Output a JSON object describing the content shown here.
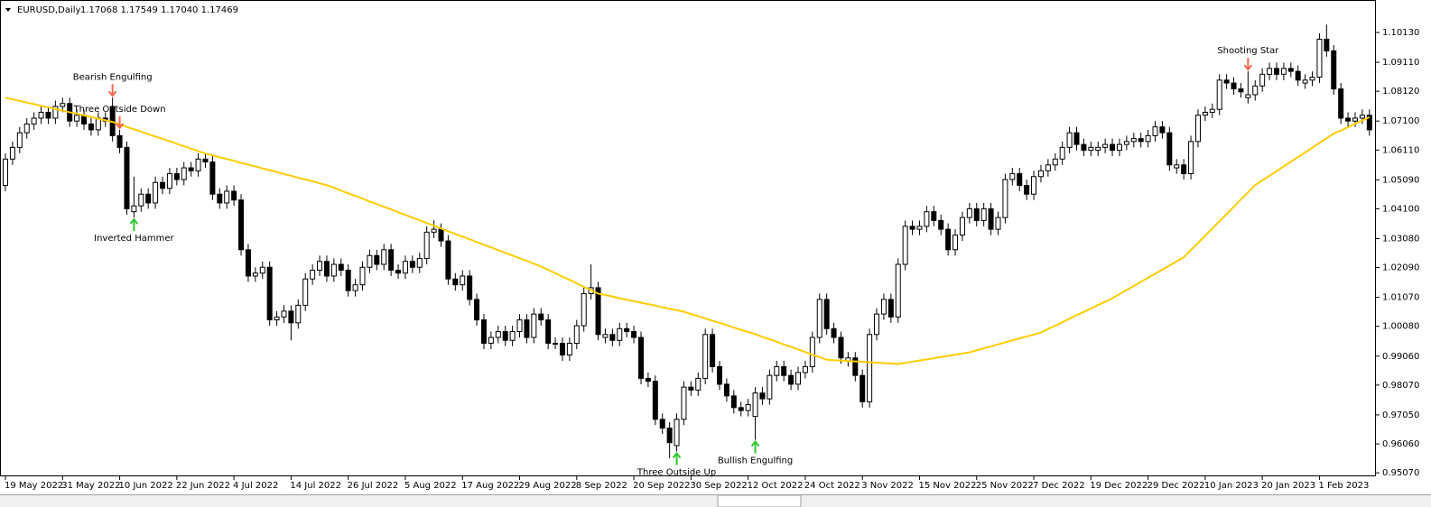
{
  "chart_data": {
    "type": "candlestick",
    "symbol": "EURUSD,Daily",
    "quote": "1.17068 1.17549 1.17040 1.17469",
    "up_color": "#ffffff",
    "down_color": "#000000",
    "outline_color": "#000000",
    "categories": [
      "19 May 2022",
      null,
      null,
      null,
      null,
      null,
      null,
      null,
      "31 May 2022",
      null,
      null,
      null,
      null,
      null,
      null,
      null,
      "10 Jun 2022",
      null,
      null,
      null,
      null,
      null,
      null,
      null,
      "22 Jun 2022",
      null,
      null,
      null,
      null,
      null,
      null,
      null,
      "4 Jul 2022",
      null,
      null,
      null,
      null,
      null,
      null,
      null,
      "14 Jul 2022",
      null,
      null,
      null,
      null,
      null,
      null,
      null,
      "26 Jul 2022",
      null,
      null,
      null,
      null,
      null,
      null,
      null,
      "5 Aug 2022",
      null,
      null,
      null,
      null,
      null,
      null,
      null,
      "17 Aug 2022",
      null,
      null,
      null,
      null,
      null,
      null,
      null,
      "29 Aug 2022",
      null,
      null,
      null,
      null,
      null,
      null,
      null,
      "8 Sep 2022",
      null,
      null,
      null,
      null,
      null,
      null,
      null,
      "20 Sep 2022",
      null,
      null,
      null,
      null,
      null,
      null,
      null,
      "30 Sep 2022",
      null,
      null,
      null,
      null,
      null,
      null,
      null,
      "12 Oct 2022",
      null,
      null,
      null,
      null,
      null,
      null,
      null,
      "24 Oct 2022",
      null,
      null,
      null,
      null,
      null,
      null,
      null,
      "3 Nov 2022",
      null,
      null,
      null,
      null,
      null,
      null,
      null,
      "15 Nov 2022",
      null,
      null,
      null,
      null,
      null,
      null,
      null,
      "25 Nov 2022",
      null,
      null,
      null,
      null,
      null,
      null,
      null,
      "7 Dec 2022",
      null,
      null,
      null,
      null,
      null,
      null,
      null,
      "19 Dec 2022",
      null,
      null,
      null,
      null,
      null,
      null,
      null,
      "29 Dec 2022",
      null,
      null,
      null,
      null,
      null,
      null,
      null,
      "10 Jan 2023",
      null,
      null,
      null,
      null,
      null,
      null,
      null,
      "20 Jan 2023",
      null,
      null,
      null,
      null,
      null,
      null,
      null,
      "1 Feb 2023",
      null,
      null,
      null,
      null,
      null,
      null,
      null
    ],
    "open": [
      1.049,
      1.058,
      1.062,
      1.067,
      1.07,
      1.072,
      1.074,
      1.072,
      1.076,
      1.077,
      1.071,
      1.073,
      1.07,
      1.068,
      1.072,
      1.076,
      1.066,
      1.062,
      1.04,
      1.042,
      1.046,
      1.043,
      1.05,
      1.048,
      1.053,
      1.051,
      1.055,
      1.054,
      1.058,
      1.057,
      1.046,
      1.043,
      1.047,
      1.044,
      1.027,
      1.018,
      1.019,
      1.021,
      1.003,
      1.004,
      1.006,
      1.002,
      1.008,
      1.017,
      1.02,
      1.023,
      1.018,
      1.022,
      1.02,
      1.013,
      1.015,
      1.021,
      1.025,
      1.022,
      1.027,
      1.02,
      1.019,
      1.023,
      1.021,
      1.024,
      1.033,
      1.034,
      1.03,
      1.017,
      1.015,
      1.018,
      1.01,
      1.003,
      0.995,
      0.997,
      0.999,
      0.996,
      0.999,
      1.003,
      0.997,
      1.005,
      1.003,
      0.995,
      0.995,
      0.991,
      0.995,
      1.001,
      1.012,
      1.014,
      0.997,
      0.998,
      0.996,
      1.0,
      0.999,
      0.997,
      0.983,
      0.982,
      0.969,
      0.966,
      0.96,
      0.969,
      0.98,
      0.979,
      0.983,
      0.998,
      0.987,
      0.981,
      0.977,
      0.973,
      0.972,
      0.97,
      0.978,
      0.976,
      0.984,
      0.987,
      0.984,
      0.981,
      0.985,
      0.987,
      0.997,
      1.01,
      1.0,
      0.997,
      0.989,
      0.99,
      0.984,
      0.975,
      0.998,
      1.005,
      1.01,
      1.004,
      1.022,
      1.035,
      1.034,
      1.035,
      1.04,
      1.037,
      1.034,
      1.027,
      1.032,
      1.038,
      1.041,
      1.037,
      1.041,
      1.034,
      1.038,
      1.051,
      1.053,
      1.049,
      1.046,
      1.052,
      1.054,
      1.056,
      1.058,
      1.062,
      1.067,
      1.063,
      1.061,
      1.061,
      1.062,
      1.063,
      1.061,
      1.063,
      1.064,
      1.065,
      1.064,
      1.066,
      1.069,
      1.067,
      1.055,
      1.056,
      1.053,
      1.064,
      1.073,
      1.074,
      1.075,
      1.085,
      1.084,
      1.082,
      1.079,
      1.08,
      1.083,
      1.087,
      1.089,
      1.087,
      1.089,
      1.088,
      1.084,
      1.085,
      1.086,
      1.099,
      1.095,
      1.082,
      1.072,
      1.071,
      1.072,
      1.073
    ],
    "high": [
      1.06,
      1.064,
      1.069,
      1.072,
      1.074,
      1.076,
      1.076,
      1.078,
      1.079,
      1.079,
      1.075,
      1.075,
      1.072,
      1.074,
      1.074,
      1.079,
      1.068,
      1.064,
      1.052,
      1.048,
      1.048,
      1.052,
      1.052,
      1.055,
      1.055,
      1.057,
      1.057,
      1.06,
      1.06,
      1.059,
      1.048,
      1.049,
      1.049,
      1.046,
      1.029,
      1.021,
      1.023,
      1.023,
      1.006,
      1.008,
      1.008,
      1.01,
      1.019,
      1.022,
      1.025,
      1.025,
      1.024,
      1.024,
      1.022,
      1.017,
      1.023,
      1.027,
      1.027,
      1.029,
      1.029,
      1.022,
      1.025,
      1.025,
      1.026,
      1.035,
      1.037,
      1.036,
      1.032,
      1.019,
      1.02,
      1.02,
      1.012,
      1.005,
      0.999,
      1.001,
      1.001,
      1.001,
      1.005,
      1.005,
      1.007,
      1.007,
      1.005,
      0.997,
      0.997,
      0.997,
      1.003,
      1.014,
      1.022,
      1.016,
      1.0,
      1.0,
      1.002,
      1.002,
      1.001,
      0.999,
      0.985,
      0.984,
      0.971,
      0.968,
      0.971,
      0.982,
      0.982,
      0.985,
      1.0,
      1.0,
      0.989,
      0.983,
      0.979,
      0.975,
      0.976,
      0.98,
      0.98,
      0.986,
      0.989,
      0.989,
      0.986,
      0.987,
      0.989,
      0.999,
      1.012,
      1.012,
      1.002,
      0.999,
      0.992,
      0.992,
      0.986,
      1.0,
      1.007,
      1.012,
      1.012,
      1.024,
      1.037,
      1.037,
      1.037,
      1.042,
      1.042,
      1.039,
      1.036,
      1.034,
      1.04,
      1.043,
      1.043,
      1.043,
      1.043,
      1.04,
      1.053,
      1.055,
      1.055,
      1.051,
      1.054,
      1.056,
      1.058,
      1.06,
      1.064,
      1.069,
      1.069,
      1.065,
      1.064,
      1.064,
      1.065,
      1.065,
      1.065,
      1.066,
      1.067,
      1.067,
      1.068,
      1.071,
      1.071,
      1.069,
      1.058,
      1.058,
      1.066,
      1.075,
      1.076,
      1.077,
      1.087,
      1.087,
      1.086,
      1.084,
      1.088,
      1.085,
      1.089,
      1.091,
      1.091,
      1.091,
      1.091,
      1.09,
      1.087,
      1.088,
      1.101,
      1.104,
      1.097,
      1.084,
      1.074,
      1.074,
      1.075,
      1.075
    ],
    "low": [
      1.047,
      1.056,
      1.06,
      1.065,
      1.068,
      1.07,
      1.07,
      1.07,
      1.074,
      1.069,
      1.069,
      1.068,
      1.066,
      1.066,
      1.069,
      1.064,
      1.06,
      1.039,
      1.038,
      1.04,
      1.041,
      1.041,
      1.046,
      1.046,
      1.049,
      1.049,
      1.052,
      1.052,
      1.055,
      1.044,
      1.041,
      1.041,
      1.042,
      1.025,
      1.016,
      1.016,
      1.017,
      1.001,
      1.001,
      1.002,
      0.996,
      1.0,
      1.006,
      1.015,
      1.018,
      1.016,
      1.016,
      1.018,
      1.011,
      1.011,
      1.013,
      1.019,
      1.02,
      1.02,
      1.018,
      1.017,
      1.017,
      1.019,
      1.019,
      1.022,
      1.031,
      1.028,
      1.015,
      1.013,
      1.013,
      1.008,
      1.001,
      0.993,
      0.993,
      0.995,
      0.994,
      0.994,
      0.997,
      0.995,
      0.995,
      1.001,
      0.993,
      0.993,
      0.989,
      0.989,
      0.993,
      0.999,
      1.01,
      0.996,
      0.995,
      0.994,
      0.994,
      0.997,
      0.995,
      0.981,
      0.98,
      0.967,
      0.964,
      0.9557,
      0.958,
      0.967,
      0.977,
      0.977,
      0.981,
      0.985,
      0.979,
      0.975,
      0.971,
      0.97,
      0.97,
      0.962,
      0.974,
      0.974,
      0.982,
      0.982,
      0.979,
      0.979,
      0.983,
      0.985,
      0.995,
      0.998,
      0.995,
      0.988,
      0.987,
      0.982,
      0.973,
      0.973,
      0.996,
      1.003,
      1.002,
      1.002,
      1.02,
      1.032,
      1.032,
      1.033,
      1.035,
      1.032,
      1.025,
      1.025,
      1.03,
      1.036,
      1.035,
      1.035,
      1.032,
      1.032,
      1.036,
      1.049,
      1.047,
      1.044,
      1.044,
      1.05,
      1.052,
      1.054,
      1.056,
      1.06,
      1.061,
      1.059,
      1.059,
      1.059,
      1.06,
      1.059,
      1.059,
      1.061,
      1.062,
      1.062,
      1.062,
      1.064,
      1.065,
      1.054,
      1.053,
      1.051,
      1.051,
      1.062,
      1.071,
      1.072,
      1.073,
      1.082,
      1.08,
      1.079,
      1.077,
      1.078,
      1.081,
      1.085,
      1.085,
      1.085,
      1.086,
      1.083,
      1.082,
      1.083,
      1.084,
      1.093,
      1.08,
      1.07,
      1.069,
      1.069,
      1.07,
      1.066
    ],
    "close": [
      1.058,
      1.062,
      1.067,
      1.07,
      1.072,
      1.074,
      1.072,
      1.076,
      1.077,
      1.071,
      1.073,
      1.07,
      1.068,
      1.072,
      1.071,
      1.066,
      1.062,
      1.041,
      1.042,
      1.046,
      1.043,
      1.05,
      1.048,
      1.053,
      1.051,
      1.055,
      1.054,
      1.058,
      1.057,
      1.046,
      1.043,
      1.047,
      1.044,
      1.027,
      1.018,
      1.019,
      1.021,
      1.003,
      1.004,
      1.006,
      1.002,
      1.008,
      1.017,
      1.02,
      1.023,
      1.018,
      1.022,
      1.02,
      1.013,
      1.015,
      1.021,
      1.025,
      1.022,
      1.027,
      1.02,
      1.019,
      1.023,
      1.021,
      1.024,
      1.033,
      1.034,
      1.03,
      1.017,
      1.015,
      1.018,
      1.01,
      1.003,
      0.995,
      0.997,
      0.999,
      0.996,
      0.999,
      1.003,
      0.997,
      1.005,
      1.003,
      0.995,
      0.995,
      0.991,
      0.995,
      1.001,
      1.012,
      1.014,
      0.998,
      0.998,
      0.996,
      1.0,
      0.999,
      0.997,
      0.983,
      0.982,
      0.969,
      0.966,
      0.961,
      0.969,
      0.98,
      0.979,
      0.983,
      0.998,
      0.987,
      0.981,
      0.977,
      0.973,
      0.972,
      0.974,
      0.978,
      0.976,
      0.984,
      0.987,
      0.984,
      0.981,
      0.985,
      0.987,
      0.997,
      1.01,
      1.0,
      0.997,
      0.99,
      0.99,
      0.984,
      0.975,
      0.998,
      1.005,
      1.01,
      1.004,
      1.022,
      1.035,
      1.034,
      1.035,
      1.04,
      1.037,
      1.034,
      1.027,
      1.032,
      1.038,
      1.041,
      1.037,
      1.041,
      1.034,
      1.038,
      1.051,
      1.053,
      1.049,
      1.046,
      1.052,
      1.054,
      1.056,
      1.058,
      1.062,
      1.067,
      1.063,
      1.061,
      1.062,
      1.062,
      1.063,
      1.061,
      1.063,
      1.064,
      1.065,
      1.064,
      1.066,
      1.069,
      1.067,
      1.056,
      1.056,
      1.053,
      1.064,
      1.073,
      1.074,
      1.075,
      1.085,
      1.084,
      1.082,
      1.081,
      1.08,
      1.083,
      1.087,
      1.089,
      1.087,
      1.089,
      1.088,
      1.085,
      1.085,
      1.086,
      1.099,
      1.095,
      1.082,
      1.072,
      1.071,
      1.072,
      1.073,
      1.068
    ],
    "ma": {
      "color": "#ffcc00",
      "values": [
        1.079,
        1.0784,
        1.0779,
        1.0773,
        1.0768,
        1.0762,
        1.0757,
        1.0751,
        1.0746,
        1.074,
        1.0735,
        1.0729,
        1.0724,
        1.0718,
        1.0713,
        1.0707,
        1.0699,
        1.069,
        1.0682,
        1.0674,
        1.0665,
        1.0657,
        1.0649,
        1.0641,
        1.0632,
        1.0624,
        1.0616,
        1.0607,
        1.0599,
        1.0593,
        1.0586,
        1.058,
        1.0574,
        1.0567,
        1.0561,
        1.0555,
        1.0548,
        1.0542,
        1.0536,
        1.0529,
        1.0523,
        1.0516,
        1.051,
        1.0504,
        1.0497,
        1.0491,
        1.0482,
        1.0472,
        1.0463,
        1.0454,
        1.0445,
        1.0435,
        1.0426,
        1.0417,
        1.0408,
        1.0398,
        1.0389,
        1.038,
        1.0371,
        1.0361,
        1.0352,
        1.0343,
        1.0333,
        1.0324,
        1.0315,
        1.0306,
        1.0296,
        1.0287,
        1.0278,
        1.0269,
        1.0259,
        1.025,
        1.0241,
        1.0232,
        1.0222,
        1.0213,
        1.0201,
        1.019,
        1.0178,
        1.0167,
        1.0155,
        1.0143,
        1.0132,
        1.012,
        1.0115,
        1.011,
        1.0104,
        1.0099,
        1.0094,
        1.0089,
        1.0084,
        1.0079,
        1.0073,
        1.0068,
        1.0063,
        1.0058,
        1.005,
        1.0043,
        1.0035,
        1.0027,
        1.002,
        1.0012,
        1.0004,
        0.9996,
        0.9989,
        0.9981,
        0.9972,
        0.9964,
        0.9955,
        0.9946,
        0.9938,
        0.9929,
        0.992,
        0.9911,
        0.9903,
        0.9894,
        0.9892,
        0.9891,
        0.9889,
        0.9888,
        0.9887,
        0.9885,
        0.9884,
        0.9882,
        0.9881,
        0.9879,
        0.9883,
        0.9887,
        0.9891,
        0.9895,
        0.9899,
        0.9903,
        0.9907,
        0.9911,
        0.9915,
        0.9919,
        0.9926,
        0.9933,
        0.9939,
        0.9946,
        0.9953,
        0.996,
        0.9967,
        0.9973,
        0.998,
        0.9987,
        0.9999,
        1.001,
        1.0022,
        1.0034,
        1.0046,
        1.0057,
        1.0069,
        1.0081,
        1.0092,
        1.0104,
        1.0118,
        1.0132,
        1.0146,
        1.016,
        1.0174,
        1.0188,
        1.0202,
        1.0216,
        1.023,
        1.0244,
        1.0269,
        1.0293,
        1.0318,
        1.0343,
        1.0368,
        1.0392,
        1.0417,
        1.0442,
        1.0466,
        1.0491,
        1.0507,
        1.0523,
        1.0539,
        1.0555,
        1.0571,
        1.0587,
        1.0603,
        1.0619,
        1.0635,
        1.0651,
        1.0667,
        1.0678,
        1.0689,
        1.0701,
        1.0712,
        1.0723
      ]
    },
    "ylim": [
      0.9495,
      1.1124
    ],
    "yticks": [
      {
        "value": 1.1013,
        "label": "1.10130"
      },
      {
        "value": 1.0911,
        "label": "1.09110"
      },
      {
        "value": 1.0812,
        "label": "1.08120"
      },
      {
        "value": 1.071,
        "label": "1.07100"
      },
      {
        "value": 1.0611,
        "label": "1.06110"
      },
      {
        "value": 1.0509,
        "label": "1.05090"
      },
      {
        "value": 1.041,
        "label": "1.04100"
      },
      {
        "value": 1.0308,
        "label": "1.03080"
      },
      {
        "value": 1.0209,
        "label": "1.02090"
      },
      {
        "value": 1.0107,
        "label": "1.01070"
      },
      {
        "value": 1.0008,
        "label": "1.00080"
      },
      {
        "value": 0.9906,
        "label": "0.99060"
      },
      {
        "value": 0.9807,
        "label": "0.98070"
      },
      {
        "value": 0.9705,
        "label": "0.97050"
      },
      {
        "value": 0.9606,
        "label": "0.96060"
      },
      {
        "value": 0.9507,
        "label": "0.95070"
      }
    ],
    "annotations": [
      {
        "text": "Bearish Engulfing",
        "index": 15,
        "direction": "down",
        "color": "#f26a4f"
      },
      {
        "text": "Three Outside Down",
        "index": 16,
        "direction": "down",
        "color": "#f26a4f"
      },
      {
        "text": "Inverted Hammer",
        "index": 18,
        "direction": "up",
        "color": "#32c832"
      },
      {
        "text": "Three Outside Up",
        "index": 94,
        "direction": "up",
        "color": "#32c832"
      },
      {
        "text": "Bullish Engulfing",
        "index": 105,
        "direction": "up",
        "color": "#32c832"
      },
      {
        "text": "Shooting Star",
        "index": 174,
        "direction": "down",
        "color": "#f26a4f"
      }
    ]
  }
}
